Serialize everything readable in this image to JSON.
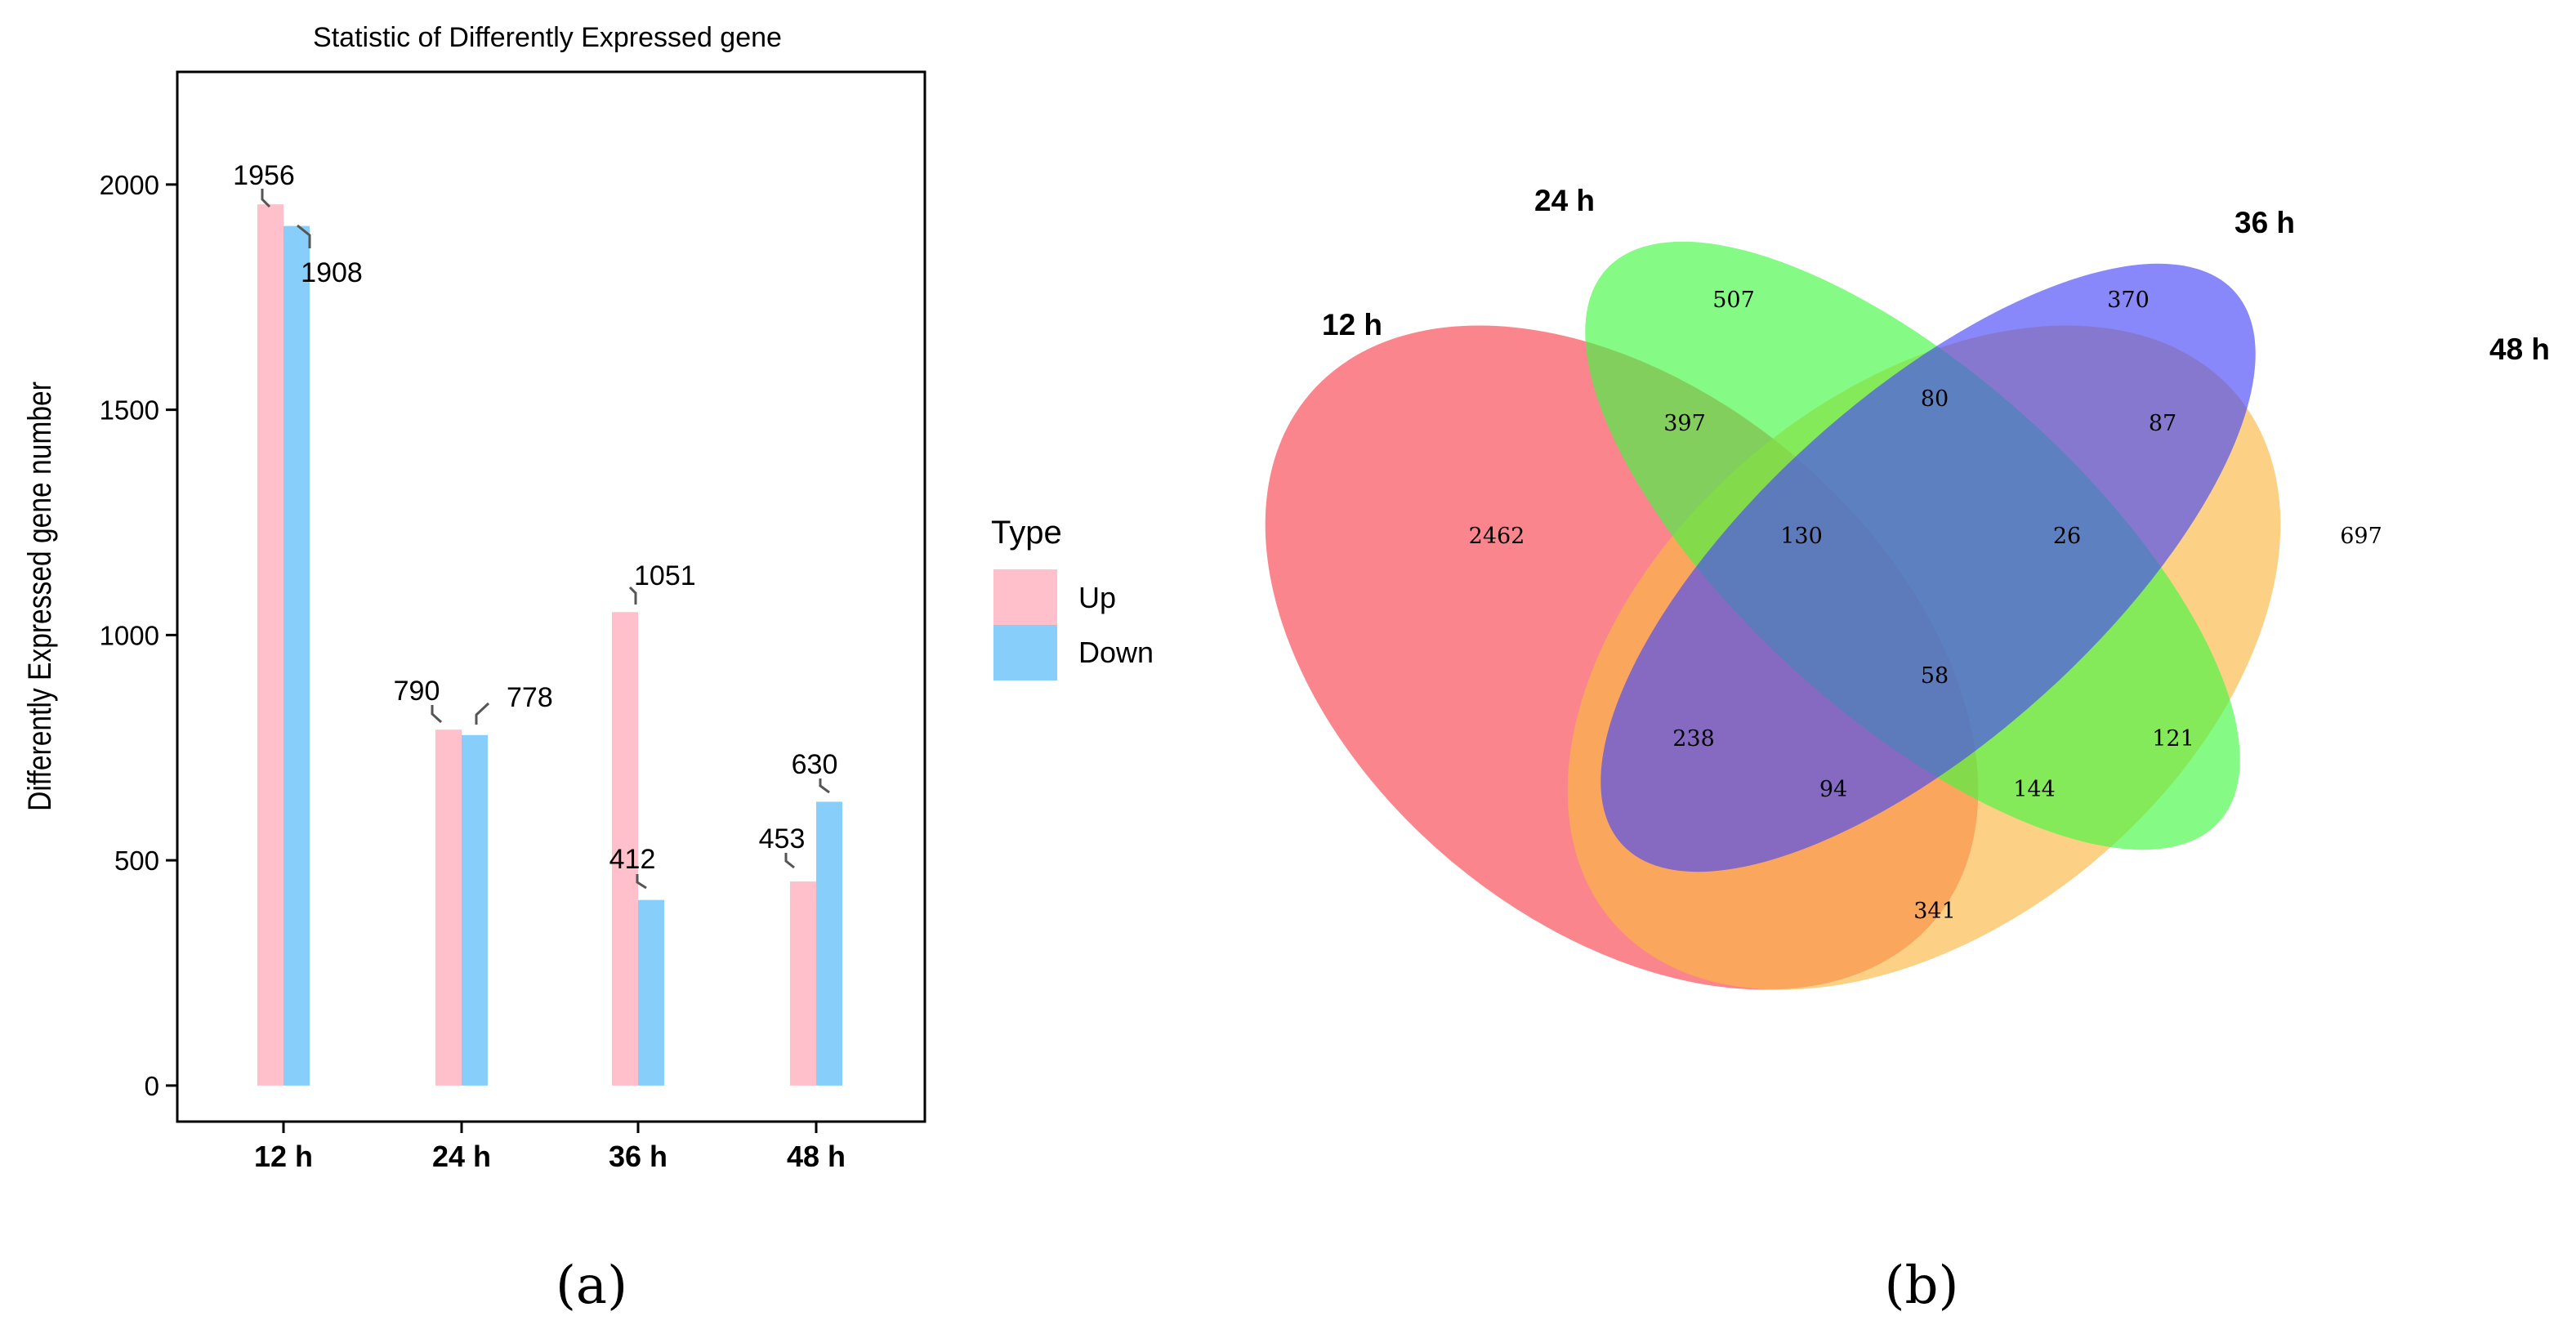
{
  "panel_a": {
    "caption": "(a)",
    "legend": {
      "title": "Type"
    }
  },
  "panel_b": {
    "caption": "(b)"
  },
  "chart_data": [
    {
      "type": "bar",
      "title": "Statistic of Differently Expressed gene",
      "xlabel": "",
      "ylabel": "Differently Expressed gene number",
      "ylim": [
        -80,
        2250
      ],
      "yticks": [
        0,
        500,
        1000,
        1500,
        2000
      ],
      "categories": [
        "12 h",
        "24 h",
        "36 h",
        "48 h"
      ],
      "series": [
        {
          "name": "Up",
          "color": "#FFC0CB",
          "values": [
            1956,
            790,
            1051,
            453
          ]
        },
        {
          "name": "Down",
          "color": "#87CEFA",
          "values": [
            1908,
            778,
            412,
            630
          ]
        }
      ],
      "legend_position": "right",
      "grid": false
    },
    {
      "type": "venn",
      "sets": [
        {
          "name": "12 h",
          "color": "#F8444E"
        },
        {
          "name": "24 h",
          "color": "#44F844"
        },
        {
          "name": "36 h",
          "color": "#4848F8"
        },
        {
          "name": "48 h",
          "color": "#FBB844"
        }
      ],
      "regions": [
        {
          "sets": [
            "12 h"
          ],
          "value": 2462
        },
        {
          "sets": [
            "24 h"
          ],
          "value": 507
        },
        {
          "sets": [
            "36 h"
          ],
          "value": 370
        },
        {
          "sets": [
            "48 h"
          ],
          "value": 697
        },
        {
          "sets": [
            "12 h",
            "24 h"
          ],
          "value": 397
        },
        {
          "sets": [
            "24 h",
            "36 h"
          ],
          "value": 80
        },
        {
          "sets": [
            "36 h",
            "48 h"
          ],
          "value": 87
        },
        {
          "sets": [
            "12 h",
            "24 h",
            "36 h"
          ],
          "value": 130
        },
        {
          "sets": [
            "24 h",
            "36 h",
            "48 h"
          ],
          "value": 26
        },
        {
          "sets": [
            "12 h",
            "24 h",
            "36 h",
            "48 h"
          ],
          "value": 58
        },
        {
          "sets": [
            "12 h",
            "36 h"
          ],
          "value": 238
        },
        {
          "sets": [
            "24 h",
            "48 h"
          ],
          "value": 121
        },
        {
          "sets": [
            "12 h",
            "36 h",
            "48 h"
          ],
          "value": 94
        },
        {
          "sets": [
            "12 h",
            "24 h",
            "48 h"
          ],
          "value": 144
        },
        {
          "sets": [
            "12 h",
            "48 h"
          ],
          "value": 341
        }
      ]
    }
  ]
}
